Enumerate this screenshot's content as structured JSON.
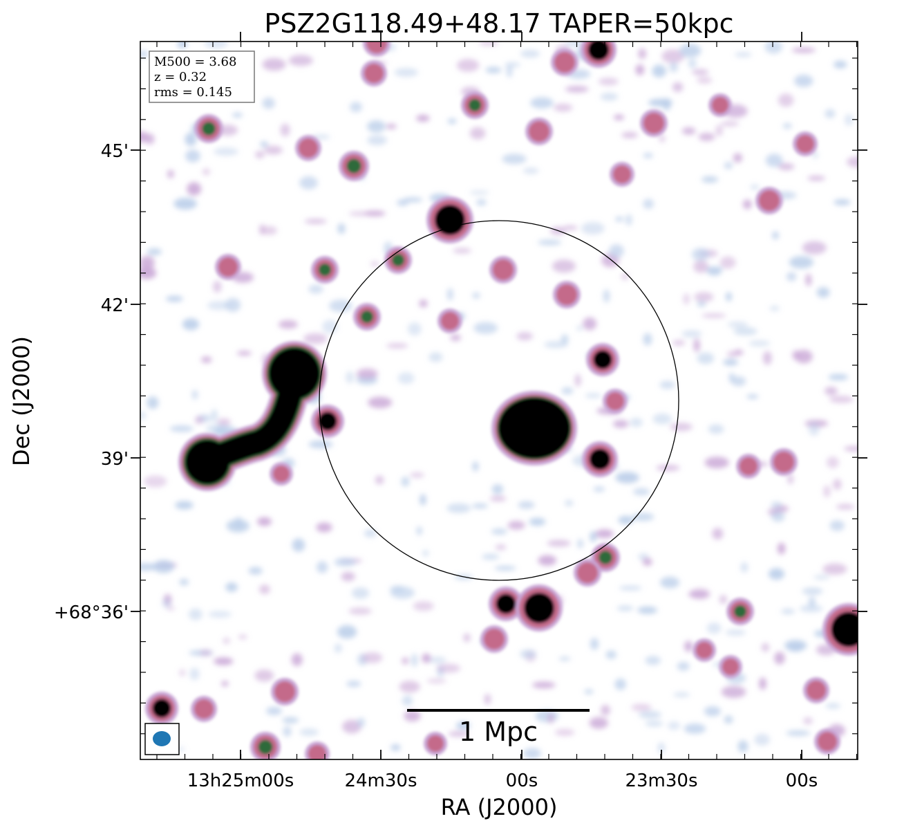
{
  "title": "PSZ2G118.49+48.17 TAPER=50kpc",
  "info_box": {
    "m500": "M500 = 3.68",
    "z": "z = 0.32",
    "rms": "rms = 0.145"
  },
  "axes": {
    "xlabel": "RA (J2000)",
    "ylabel": "Dec (J2000)",
    "x_ticks": [
      "13h25m00s",
      "24m30s",
      "00s",
      "23m30s",
      "00s"
    ],
    "y_ticks": [
      "45'",
      "42'",
      "39'",
      "+68°36'"
    ]
  },
  "scale_bar": {
    "label": "1 Mpc"
  },
  "colors": {
    "background": "#ffffff",
    "faint": "#b9cde9",
    "mid": "#c9a6d6",
    "bright": "#c46a8a",
    "peak": "#2e6a3a",
    "saturated": "#000000",
    "beam": "#1f77b4"
  }
}
